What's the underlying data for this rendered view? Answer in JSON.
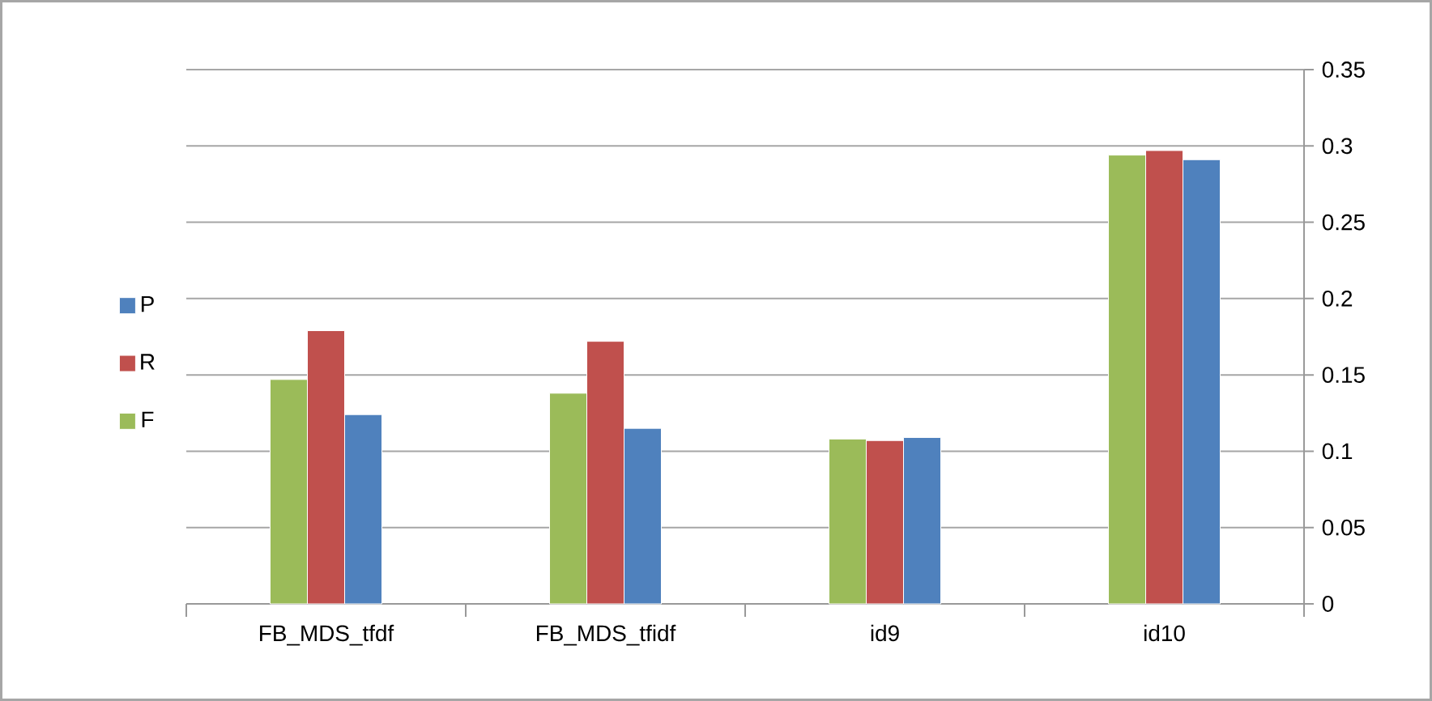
{
  "chart_data": {
    "type": "bar",
    "categories": [
      "FB_MDS_tfdf",
      "FB_MDS_tfidf",
      "id9",
      "id10"
    ],
    "series": [
      {
        "name": "F",
        "color": "#9bbb59",
        "values": [
          0.147,
          0.138,
          0.108,
          0.294
        ]
      },
      {
        "name": "R",
        "color": "#c0504d",
        "values": [
          0.179,
          0.172,
          0.107,
          0.297
        ]
      },
      {
        "name": "P",
        "color": "#4f81bd",
        "values": [
          0.124,
          0.115,
          0.109,
          0.291
        ]
      }
    ],
    "ylim": [
      0,
      0.35
    ],
    "yticks": [
      0,
      0.05,
      0.1,
      0.15,
      0.2,
      0.25,
      0.3,
      0.35
    ],
    "grid": "y",
    "legend": "left"
  }
}
